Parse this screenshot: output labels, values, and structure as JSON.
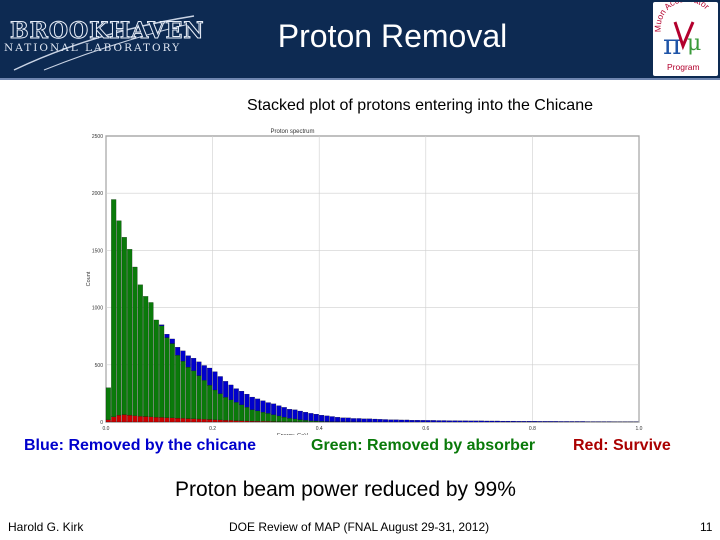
{
  "header": {
    "title": "Proton Removal",
    "bg_color": "#0d2a52",
    "logo_left": {
      "line1": "BROOKHAVEN",
      "line2": "NATIONAL LABORATORY"
    },
    "logo_right": {
      "line1": "Muon Accelerator",
      "line2": "Program",
      "icon": "map-pi-mu-logo"
    }
  },
  "slide": {
    "plot_title": "Stacked plot of protons entering into the Chicane",
    "legend": {
      "blue": "Blue: Removed by the chicane",
      "green": "Green: Removed by absorber",
      "red": "Red: Survive"
    },
    "summary": "Proton beam power reduced by 99%"
  },
  "footer": {
    "author": "Harold G. Kirk",
    "event": "DOE Review of MAP (FNAL August 29-31, 2012)",
    "page": "11"
  },
  "chart_data": {
    "type": "bar",
    "stacked": true,
    "title": "Proton spectrum",
    "xlabel": "Energy, GeV",
    "ylabel": "Count",
    "xlim": [
      0.0,
      1.0
    ],
    "ylim": [
      0,
      2500
    ],
    "x_ticks": [
      "0.0",
      "0.2",
      "0.4",
      "0.6",
      "0.8",
      "1.0"
    ],
    "y_ticks": [
      "0",
      "500",
      "1000",
      "1500",
      "2000",
      "2500"
    ],
    "grid": true,
    "bin_width": 0.01,
    "bin_count": 100,
    "colors": {
      "red": "#cc0000",
      "green": "#0a7a0a",
      "blue": "#0000cc"
    },
    "series": [
      {
        "color": "red",
        "values": [
          20,
          45,
          60,
          65,
          60,
          55,
          50,
          48,
          45,
          42,
          40,
          38,
          36,
          34,
          32,
          30,
          28,
          26,
          24,
          22,
          20,
          18,
          16,
          14,
          12,
          10,
          9,
          8,
          7,
          6,
          5,
          4,
          3,
          3,
          2,
          2,
          1,
          1,
          1,
          1,
          0,
          0,
          0,
          0,
          0,
          0,
          0,
          0,
          0,
          0,
          0,
          0,
          0,
          0,
          0,
          0,
          0,
          0,
          0,
          0,
          0,
          0,
          0,
          0,
          0,
          0,
          0,
          0,
          0,
          0,
          0,
          0,
          0,
          0,
          0,
          0,
          0,
          0,
          0,
          0,
          0,
          0,
          0,
          0,
          0,
          0,
          0,
          0,
          0,
          0,
          0,
          0,
          0,
          0,
          0,
          0,
          0,
          0,
          0,
          0
        ]
      },
      {
        "color": "green",
        "values": [
          280,
          1900,
          1700,
          1550,
          1450,
          1300,
          1150,
          1050,
          1000,
          850,
          800,
          700,
          650,
          550,
          500,
          450,
          420,
          380,
          340,
          300,
          260,
          230,
          200,
          180,
          160,
          140,
          120,
          100,
          90,
          80,
          70,
          60,
          50,
          40,
          30,
          25,
          20,
          15,
          10,
          8,
          5,
          4,
          3,
          2,
          2,
          1,
          1,
          1,
          0,
          0,
          0,
          0,
          0,
          0,
          0,
          0,
          0,
          0,
          0,
          0,
          0,
          0,
          0,
          0,
          0,
          0,
          0,
          0,
          0,
          0,
          0,
          0,
          0,
          0,
          0,
          0,
          0,
          0,
          0,
          0,
          0,
          0,
          0,
          0,
          0,
          0,
          0,
          0,
          0,
          0,
          0,
          0,
          0,
          0,
          0,
          0,
          0,
          0,
          0,
          0
        ]
      },
      {
        "color": "blue",
        "values": [
          0,
          0,
          0,
          0,
          0,
          0,
          0,
          0,
          0,
          0,
          10,
          30,
          40,
          70,
          90,
          100,
          110,
          120,
          130,
          150,
          160,
          150,
          140,
          130,
          120,
          120,
          115,
          110,
          105,
          100,
          95,
          95,
          90,
          85,
          80,
          80,
          75,
          70,
          65,
          60,
          55,
          50,
          45,
          40,
          35,
          35,
          30,
          30,
          28,
          28,
          26,
          24,
          22,
          20,
          20,
          18,
          18,
          16,
          16,
          15,
          14,
          14,
          13,
          13,
          12,
          12,
          11,
          11,
          10,
          10,
          10,
          9,
          9,
          9,
          8,
          8,
          8,
          7,
          7,
          7,
          7,
          6,
          6,
          6,
          6,
          5,
          5,
          5,
          5,
          5,
          4,
          4,
          4,
          4,
          4,
          3,
          3,
          3,
          3,
          3
        ]
      }
    ]
  }
}
